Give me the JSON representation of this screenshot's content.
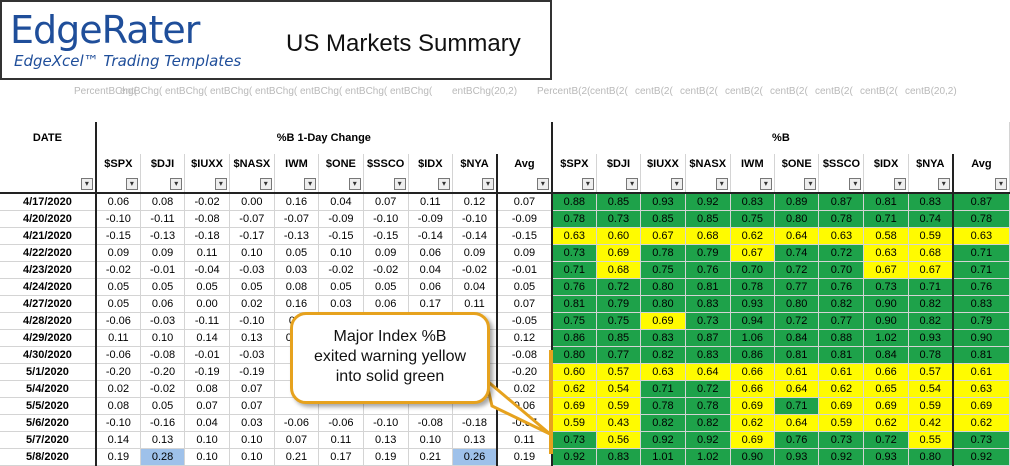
{
  "brand": {
    "logo_name": "EdgeRater",
    "logo_tagline": "EdgeXcel™ Trading Templates"
  },
  "sheet_title": "US Markets Summary",
  "formula_row": [
    {
      "text": "PercentBChg("
    },
    {
      "text": "entBChg("
    },
    {
      "text": "entBChg("
    },
    {
      "text": "entBChg("
    },
    {
      "text": "entBChg("
    },
    {
      "text": "entBChg("
    },
    {
      "text": "entBChg("
    },
    {
      "text": "entBChg("
    },
    {
      "text": "entBChg(20,2)"
    },
    {
      "text": "PercentB(2("
    },
    {
      "text": "centB(2("
    },
    {
      "text": "centB(2("
    },
    {
      "text": "centB(2("
    },
    {
      "text": "centB(2("
    },
    {
      "text": "centB(2("
    },
    {
      "text": "centB(2("
    },
    {
      "text": "centB(2("
    },
    {
      "text": "centB(20,2)"
    }
  ],
  "headers": {
    "date": "DATE",
    "left_group": "%B 1-Day Change",
    "right_group": "%B",
    "columns": [
      "$SPX",
      "$DJI",
      "$IUXX",
      "$NASX",
      "IWM",
      "$ONE",
      "$SSCO",
      "$IDX",
      "$NYA",
      "Avg"
    ],
    "filter_icon": "▾"
  },
  "rows": [
    {
      "date": "4/17/2020",
      "chg": [
        "0.06",
        "0.08",
        "-0.02",
        "0.00",
        "0.16",
        "0.04",
        "0.07",
        "0.11",
        "0.12",
        "0.07"
      ],
      "pb": [
        "0.88",
        "0.85",
        "0.93",
        "0.92",
        "0.83",
        "0.89",
        "0.87",
        "0.81",
        "0.83",
        "0.87"
      ]
    },
    {
      "date": "4/20/2020",
      "chg": [
        "-0.10",
        "-0.11",
        "-0.08",
        "-0.07",
        "-0.07",
        "-0.09",
        "-0.10",
        "-0.09",
        "-0.10",
        "-0.09"
      ],
      "pb": [
        "0.78",
        "0.73",
        "0.85",
        "0.85",
        "0.75",
        "0.80",
        "0.78",
        "0.71",
        "0.74",
        "0.78"
      ]
    },
    {
      "date": "4/21/2020",
      "chg": [
        "-0.15",
        "-0.13",
        "-0.18",
        "-0.17",
        "-0.13",
        "-0.15",
        "-0.15",
        "-0.14",
        "-0.14",
        "-0.15"
      ],
      "pb": [
        "0.63",
        "0.60",
        "0.67",
        "0.68",
        "0.62",
        "0.64",
        "0.63",
        "0.58",
        "0.59",
        "0.63"
      ]
    },
    {
      "date": "4/22/2020",
      "chg": [
        "0.09",
        "0.09",
        "0.11",
        "0.10",
        "0.05",
        "0.10",
        "0.09",
        "0.06",
        "0.09",
        "0.09"
      ],
      "pb": [
        "0.73",
        "0.69",
        "0.78",
        "0.79",
        "0.67",
        "0.74",
        "0.72",
        "0.63",
        "0.68",
        "0.71"
      ]
    },
    {
      "date": "4/23/2020",
      "chg": [
        "-0.02",
        "-0.01",
        "-0.04",
        "-0.03",
        "0.03",
        "-0.02",
        "-0.02",
        "0.04",
        "-0.02",
        "-0.01"
      ],
      "pb": [
        "0.71",
        "0.68",
        "0.75",
        "0.76",
        "0.70",
        "0.72",
        "0.70",
        "0.67",
        "0.67",
        "0.71"
      ]
    },
    {
      "date": "4/24/2020",
      "chg": [
        "0.05",
        "0.05",
        "0.05",
        "0.05",
        "0.08",
        "0.05",
        "0.05",
        "0.06",
        "0.04",
        "0.05"
      ],
      "pb": [
        "0.76",
        "0.72",
        "0.80",
        "0.81",
        "0.78",
        "0.77",
        "0.76",
        "0.73",
        "0.71",
        "0.76"
      ]
    },
    {
      "date": "4/27/2020",
      "chg": [
        "0.05",
        "0.06",
        "0.00",
        "0.02",
        "0.16",
        "0.03",
        "0.06",
        "0.17",
        "0.11",
        "0.07"
      ],
      "pb": [
        "0.81",
        "0.79",
        "0.80",
        "0.83",
        "0.93",
        "0.80",
        "0.82",
        "0.90",
        "0.82",
        "0.83"
      ]
    },
    {
      "date": "4/28/2020",
      "chg": [
        "-0.06",
        "-0.03",
        "-0.11",
        "-0.10",
        "0.0",
        "",
        "",
        "",
        "",
        "-0.05"
      ],
      "pb": [
        "0.75",
        "0.75",
        "0.69",
        "0.73",
        "0.94",
        "0.72",
        "0.77",
        "0.90",
        "0.82",
        "0.79"
      ]
    },
    {
      "date": "4/29/2020",
      "chg": [
        "0.11",
        "0.10",
        "0.14",
        "0.13",
        "0.13",
        "",
        "",
        "",
        "",
        "0.12"
      ],
      "pb": [
        "0.86",
        "0.85",
        "0.83",
        "0.87",
        "1.06",
        "0.84",
        "0.88",
        "1.02",
        "0.93",
        "0.90"
      ]
    },
    {
      "date": "4/30/2020",
      "chg": [
        "-0.06",
        "-0.08",
        "-0.01",
        "-0.03",
        "",
        "",
        "",
        "",
        "",
        "-0.08"
      ],
      "pb": [
        "0.80",
        "0.77",
        "0.82",
        "0.83",
        "0.86",
        "0.81",
        "0.81",
        "0.84",
        "0.78",
        "0.81"
      ]
    },
    {
      "date": "5/1/2020",
      "chg": [
        "-0.20",
        "-0.20",
        "-0.19",
        "-0.19",
        "",
        "",
        "",
        "",
        "",
        "-0.20"
      ],
      "pb": [
        "0.60",
        "0.57",
        "0.63",
        "0.64",
        "0.66",
        "0.61",
        "0.61",
        "0.66",
        "0.57",
        "0.61"
      ]
    },
    {
      "date": "5/4/2020",
      "chg": [
        "0.02",
        "-0.02",
        "0.08",
        "0.07",
        "",
        "",
        "",
        "",
        "",
        "0.02"
      ],
      "pb": [
        "0.62",
        "0.54",
        "0.71",
        "0.72",
        "0.66",
        "0.64",
        "0.62",
        "0.65",
        "0.54",
        "0.63"
      ]
    },
    {
      "date": "5/5/2020",
      "chg": [
        "0.08",
        "0.05",
        "0.07",
        "0.07",
        "",
        "",
        "",
        "",
        "",
        "0.06"
      ],
      "pb": [
        "0.69",
        "0.59",
        "0.78",
        "0.78",
        "0.69",
        "0.71",
        "0.69",
        "0.69",
        "0.59",
        "0.69"
      ]
    },
    {
      "date": "5/6/2020",
      "chg": [
        "-0.10",
        "-0.16",
        "0.04",
        "0.03",
        "-0.06",
        "-0.06",
        "-0.10",
        "-0.08",
        "-0.18",
        "-0.07"
      ],
      "pb": [
        "0.59",
        "0.43",
        "0.82",
        "0.82",
        "0.62",
        "0.64",
        "0.59",
        "0.62",
        "0.42",
        "0.62"
      ]
    },
    {
      "date": "5/7/2020",
      "chg": [
        "0.14",
        "0.13",
        "0.10",
        "0.10",
        "0.07",
        "0.11",
        "0.13",
        "0.10",
        "0.13",
        "0.11"
      ],
      "pb": [
        "0.73",
        "0.56",
        "0.92",
        "0.92",
        "0.69",
        "0.76",
        "0.73",
        "0.72",
        "0.55",
        "0.73"
      ]
    },
    {
      "date": "5/8/2020",
      "chg": [
        "0.19",
        "0.28",
        "0.10",
        "0.10",
        "0.21",
        "0.17",
        "0.19",
        "0.21",
        "0.26",
        "0.19"
      ],
      "pb": [
        "0.92",
        "0.83",
        "1.01",
        "1.02",
        "0.90",
        "0.93",
        "0.92",
        "0.93",
        "0.80",
        "0.92"
      ]
    }
  ],
  "colors": {
    "green": "#1ea24a",
    "yellow": "#fffb00",
    "highlight_blue": "#9ec1ea",
    "callout_border": "#e6a21e"
  },
  "callout": {
    "line1": "Major Index %B",
    "line2": "exited warning yellow",
    "line3": "into solid green"
  }
}
